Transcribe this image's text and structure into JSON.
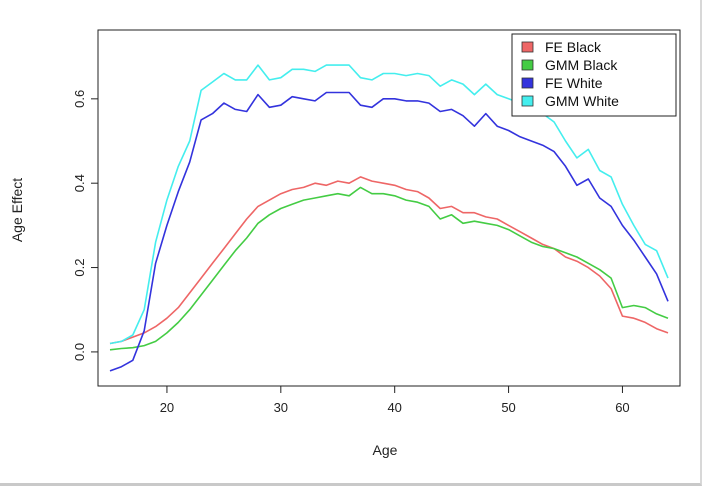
{
  "chart_data": {
    "type": "line",
    "title": "",
    "xlabel": "Age",
    "ylabel": "Age Effect",
    "xlim": [
      15,
      64
    ],
    "ylim": [
      -0.05,
      0.73
    ],
    "x_ticks": [
      20,
      30,
      40,
      50,
      60
    ],
    "y_ticks": [
      0.0,
      0.2,
      0.4,
      0.6
    ],
    "x_tick_labels": [
      "20",
      "30",
      "40",
      "50",
      "60"
    ],
    "y_tick_labels": [
      "0.0",
      "0.2",
      "0.4",
      "0.6"
    ],
    "grid": false,
    "legend_position": "top-right",
    "x": [
      15,
      16,
      17,
      18,
      19,
      20,
      21,
      22,
      23,
      24,
      25,
      26,
      27,
      28,
      29,
      30,
      31,
      32,
      33,
      34,
      35,
      36,
      37,
      38,
      39,
      40,
      41,
      42,
      43,
      44,
      45,
      46,
      47,
      48,
      49,
      50,
      51,
      52,
      53,
      54,
      55,
      56,
      57,
      58,
      59,
      60,
      61,
      62,
      63,
      64
    ],
    "series": [
      {
        "name": "FE Black",
        "color": "#ee6666",
        "values": [
          0.02,
          0.025,
          0.035,
          0.045,
          0.06,
          0.08,
          0.105,
          0.14,
          0.175,
          0.21,
          0.245,
          0.28,
          0.315,
          0.345,
          0.36,
          0.375,
          0.385,
          0.39,
          0.4,
          0.395,
          0.405,
          0.4,
          0.415,
          0.405,
          0.4,
          0.395,
          0.385,
          0.38,
          0.365,
          0.34,
          0.345,
          0.33,
          0.33,
          0.32,
          0.315,
          0.3,
          0.285,
          0.27,
          0.255,
          0.245,
          0.225,
          0.215,
          0.2,
          0.18,
          0.15,
          0.085,
          0.08,
          0.07,
          0.055,
          0.045
        ]
      },
      {
        "name": "GMM Black",
        "color": "#44cc44",
        "values": [
          0.005,
          0.008,
          0.01,
          0.015,
          0.025,
          0.045,
          0.07,
          0.1,
          0.135,
          0.17,
          0.205,
          0.24,
          0.27,
          0.305,
          0.325,
          0.34,
          0.35,
          0.36,
          0.365,
          0.37,
          0.375,
          0.37,
          0.39,
          0.375,
          0.375,
          0.37,
          0.36,
          0.355,
          0.345,
          0.315,
          0.325,
          0.305,
          0.31,
          0.305,
          0.3,
          0.29,
          0.275,
          0.26,
          0.25,
          0.245,
          0.235,
          0.225,
          0.21,
          0.195,
          0.175,
          0.105,
          0.11,
          0.105,
          0.09,
          0.08
        ]
      },
      {
        "name": "FE White",
        "color": "#3333dd",
        "values": [
          -0.045,
          -0.035,
          -0.02,
          0.05,
          0.21,
          0.3,
          0.38,
          0.45,
          0.55,
          0.565,
          0.59,
          0.575,
          0.57,
          0.61,
          0.58,
          0.585,
          0.605,
          0.6,
          0.595,
          0.615,
          0.615,
          0.615,
          0.585,
          0.58,
          0.6,
          0.6,
          0.595,
          0.595,
          0.59,
          0.57,
          0.575,
          0.56,
          0.535,
          0.565,
          0.535,
          0.525,
          0.51,
          0.5,
          0.49,
          0.475,
          0.44,
          0.395,
          0.41,
          0.365,
          0.345,
          0.3,
          0.265,
          0.225,
          0.185,
          0.12
        ]
      },
      {
        "name": "GMM White",
        "color": "#44eeee",
        "values": [
          0.02,
          0.025,
          0.04,
          0.1,
          0.26,
          0.36,
          0.44,
          0.5,
          0.62,
          0.64,
          0.66,
          0.645,
          0.645,
          0.68,
          0.645,
          0.65,
          0.67,
          0.67,
          0.665,
          0.68,
          0.68,
          0.68,
          0.65,
          0.645,
          0.66,
          0.66,
          0.655,
          0.66,
          0.655,
          0.63,
          0.645,
          0.635,
          0.61,
          0.635,
          0.61,
          0.6,
          0.59,
          0.575,
          0.565,
          0.545,
          0.5,
          0.46,
          0.48,
          0.43,
          0.415,
          0.35,
          0.3,
          0.255,
          0.24,
          0.175
        ]
      }
    ]
  }
}
